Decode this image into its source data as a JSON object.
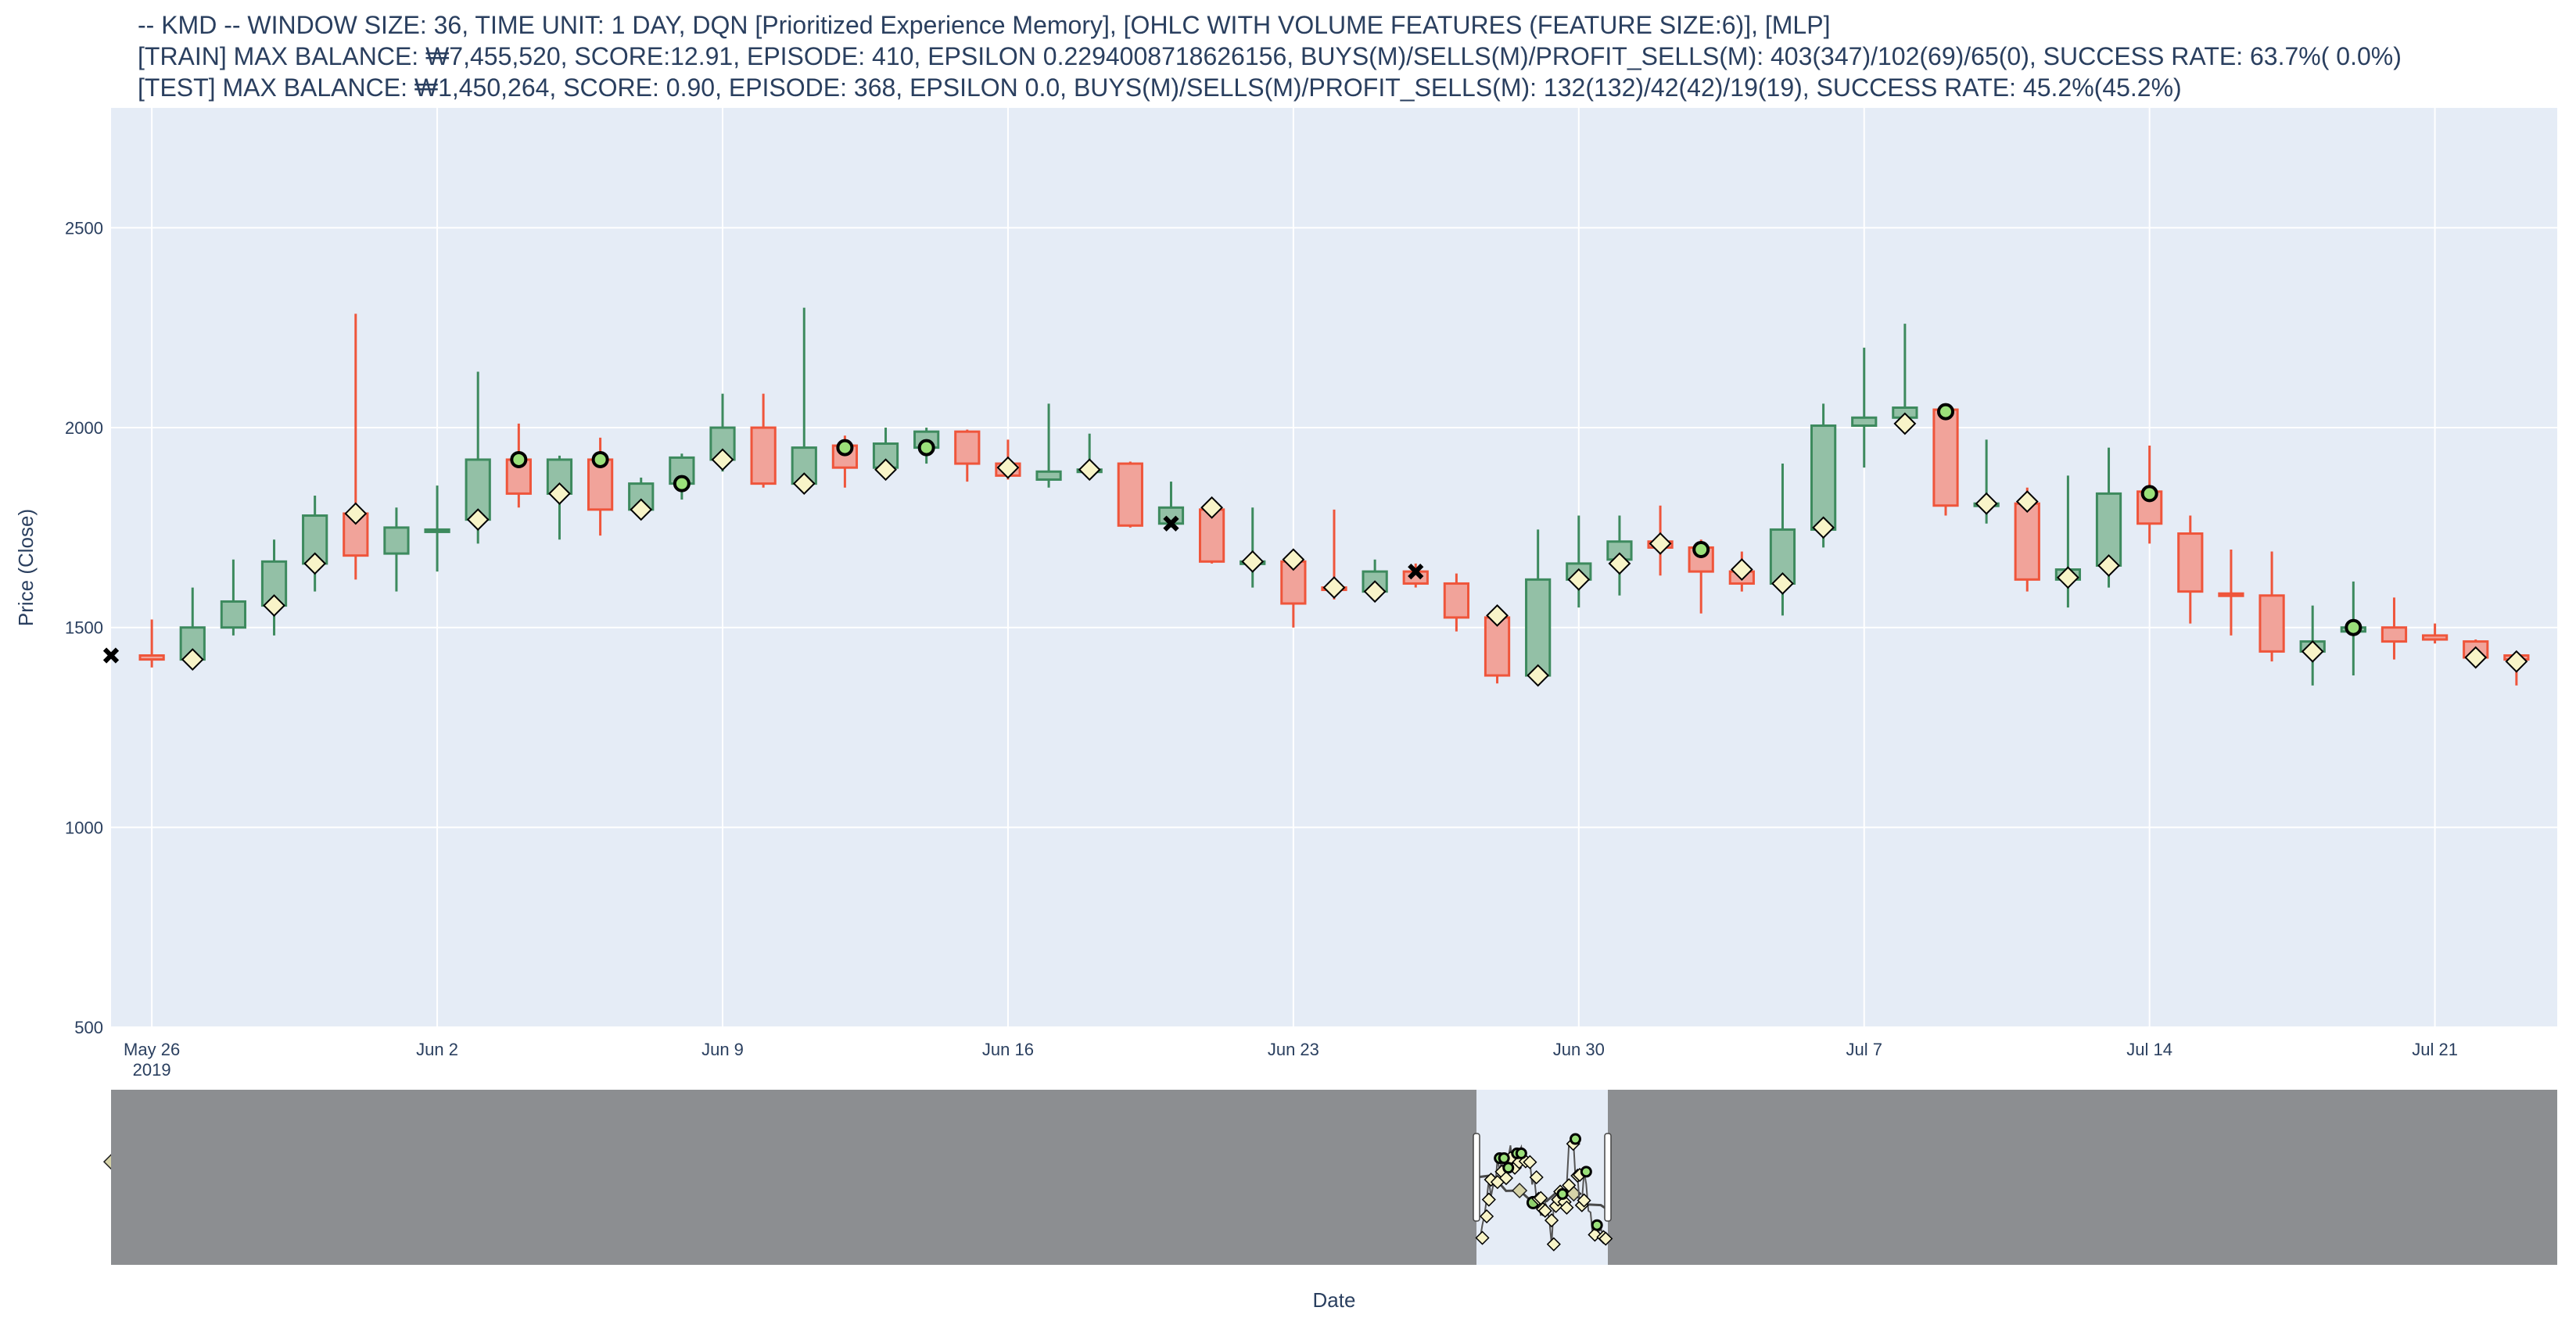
{
  "title_lines": [
    "-- KMD -- WINDOW SIZE: 36, TIME UNIT: 1 DAY, DQN [Prioritized Experience Memory], [OHLC WITH VOLUME FEATURES (FEATURE SIZE:6)], [MLP]",
    "[TRAIN] MAX BALANCE: ₩7,455,520, SCORE:12.91, EPISODE: 410, EPSILON 0.2294008718626156, BUYS(M)/SELLS(M)/PROFIT_SELLS(M): 403(347)/102(69)/65(0), SUCCESS RATE: 63.7%( 0.0%)",
    "[TEST] MAX BALANCE: ₩1,450,264, SCORE: 0.90, EPISODE: 368, EPSILON 0.0, BUYS(M)/SELLS(M)/PROFIT_SELLS(M): 132(132)/42(42)/19(19), SUCCESS RATE: 45.2%(45.2%)"
  ],
  "colors": {
    "plot_bg": "#e5ecf6",
    "grid": "#ffffff",
    "increasing": "#3d8a5e",
    "increasing_fill": "#93c0a6",
    "decreasing": "#ef553b",
    "decreasing_fill": "#f1a39a",
    "buy_marker": "#f8f4c8",
    "profit_sell_marker": "#9be07a",
    "rangeslider_mask": "#8c8e91",
    "rangeslider_window": "#e5ecf6"
  },
  "chart_data": {
    "type": "candlestick",
    "xlabel": "Date",
    "ylabel": "Price (Close)",
    "ylim": [
      500,
      2800
    ],
    "y_ticks": [
      500,
      1000,
      1500,
      2000,
      2500
    ],
    "x_range": [
      "2019-05-25",
      "2019-07-24"
    ],
    "x_ticks": [
      {
        "date": "2019-05-26",
        "label": "May 26",
        "sublabel": "2019"
      },
      {
        "date": "2019-06-02",
        "label": "Jun 2",
        "sublabel": ""
      },
      {
        "date": "2019-06-09",
        "label": "Jun 9",
        "sublabel": ""
      },
      {
        "date": "2019-06-16",
        "label": "Jun 16",
        "sublabel": ""
      },
      {
        "date": "2019-06-23",
        "label": "Jun 23",
        "sublabel": ""
      },
      {
        "date": "2019-06-30",
        "label": "Jun 30",
        "sublabel": ""
      },
      {
        "date": "2019-07-07",
        "label": "Jul 7",
        "sublabel": ""
      },
      {
        "date": "2019-07-14",
        "label": "Jul 14",
        "sublabel": ""
      },
      {
        "date": "2019-07-21",
        "label": "Jul 21",
        "sublabel": ""
      }
    ],
    "grid": true,
    "candles": [
      {
        "date": "2019-05-26",
        "open": 1430,
        "high": 1520,
        "low": 1400,
        "close": 1420
      },
      {
        "date": "2019-05-27",
        "open": 1420,
        "high": 1600,
        "low": 1410,
        "close": 1500
      },
      {
        "date": "2019-05-28",
        "open": 1500,
        "high": 1670,
        "low": 1480,
        "close": 1565
      },
      {
        "date": "2019-05-29",
        "open": 1555,
        "high": 1720,
        "low": 1480,
        "close": 1665
      },
      {
        "date": "2019-05-30",
        "open": 1660,
        "high": 1830,
        "low": 1590,
        "close": 1780
      },
      {
        "date": "2019-05-31",
        "open": 1785,
        "high": 2285,
        "low": 1620,
        "close": 1680
      },
      {
        "date": "2019-06-01",
        "open": 1685,
        "high": 1800,
        "low": 1590,
        "close": 1750
      },
      {
        "date": "2019-06-02",
        "open": 1745,
        "high": 1855,
        "low": 1640,
        "close": 1745
      },
      {
        "date": "2019-06-03",
        "open": 1770,
        "high": 2140,
        "low": 1710,
        "close": 1920
      },
      {
        "date": "2019-06-04",
        "open": 1920,
        "high": 2010,
        "low": 1800,
        "close": 1835
      },
      {
        "date": "2019-06-05",
        "open": 1835,
        "high": 1930,
        "low": 1720,
        "close": 1920
      },
      {
        "date": "2019-06-06",
        "open": 1920,
        "high": 1975,
        "low": 1730,
        "close": 1795
      },
      {
        "date": "2019-06-07",
        "open": 1795,
        "high": 1875,
        "low": 1770,
        "close": 1860
      },
      {
        "date": "2019-06-08",
        "open": 1860,
        "high": 1935,
        "low": 1820,
        "close": 1925
      },
      {
        "date": "2019-06-09",
        "open": 1920,
        "high": 2085,
        "low": 1890,
        "close": 2000
      },
      {
        "date": "2019-06-10",
        "open": 2000,
        "high": 2085,
        "low": 1850,
        "close": 1860
      },
      {
        "date": "2019-06-11",
        "open": 1860,
        "high": 2300,
        "low": 1850,
        "close": 1950
      },
      {
        "date": "2019-06-12",
        "open": 1955,
        "high": 1980,
        "low": 1850,
        "close": 1900
      },
      {
        "date": "2019-06-13",
        "open": 1900,
        "high": 2000,
        "low": 1885,
        "close": 1960
      },
      {
        "date": "2019-06-14",
        "open": 1950,
        "high": 2000,
        "low": 1910,
        "close": 1990
      },
      {
        "date": "2019-06-15",
        "open": 1990,
        "high": 1995,
        "low": 1865,
        "close": 1910
      },
      {
        "date": "2019-06-16",
        "open": 1910,
        "high": 1970,
        "low": 1870,
        "close": 1880
      },
      {
        "date": "2019-06-17",
        "open": 1870,
        "high": 2060,
        "low": 1850,
        "close": 1890
      },
      {
        "date": "2019-06-18",
        "open": 1895,
        "high": 1985,
        "low": 1885,
        "close": 1895
      },
      {
        "date": "2019-06-19",
        "open": 1910,
        "high": 1915,
        "low": 1750,
        "close": 1755
      },
      {
        "date": "2019-06-20",
        "open": 1760,
        "high": 1865,
        "low": 1750,
        "close": 1800
      },
      {
        "date": "2019-06-21",
        "open": 1795,
        "high": 1800,
        "low": 1660,
        "close": 1665
      },
      {
        "date": "2019-06-22",
        "open": 1665,
        "high": 1800,
        "low": 1600,
        "close": 1665
      },
      {
        "date": "2019-06-23",
        "open": 1665,
        "high": 1675,
        "low": 1500,
        "close": 1560
      },
      {
        "date": "2019-06-24",
        "open": 1600,
        "high": 1795,
        "low": 1570,
        "close": 1595
      },
      {
        "date": "2019-06-25",
        "open": 1590,
        "high": 1670,
        "low": 1570,
        "close": 1640
      },
      {
        "date": "2019-06-26",
        "open": 1640,
        "high": 1660,
        "low": 1600,
        "close": 1610
      },
      {
        "date": "2019-06-27",
        "open": 1610,
        "high": 1635,
        "low": 1490,
        "close": 1525
      },
      {
        "date": "2019-06-28",
        "open": 1525,
        "high": 1540,
        "low": 1360,
        "close": 1380
      },
      {
        "date": "2019-06-29",
        "open": 1380,
        "high": 1745,
        "low": 1370,
        "close": 1620
      },
      {
        "date": "2019-06-30",
        "open": 1620,
        "high": 1780,
        "low": 1550,
        "close": 1660
      },
      {
        "date": "2019-07-01",
        "open": 1670,
        "high": 1780,
        "low": 1580,
        "close": 1715
      },
      {
        "date": "2019-07-02",
        "open": 1715,
        "high": 1805,
        "low": 1630,
        "close": 1700
      },
      {
        "date": "2019-07-03",
        "open": 1700,
        "high": 1720,
        "low": 1535,
        "close": 1640
      },
      {
        "date": "2019-07-04",
        "open": 1640,
        "high": 1690,
        "low": 1590,
        "close": 1610
      },
      {
        "date": "2019-07-05",
        "open": 1610,
        "high": 1910,
        "low": 1530,
        "close": 1745
      },
      {
        "date": "2019-07-06",
        "open": 1745,
        "high": 2060,
        "low": 1700,
        "close": 2005
      },
      {
        "date": "2019-07-07",
        "open": 2005,
        "high": 2200,
        "low": 1900,
        "close": 2025
      },
      {
        "date": "2019-07-08",
        "open": 2025,
        "high": 2260,
        "low": 2000,
        "close": 2050
      },
      {
        "date": "2019-07-09",
        "open": 2045,
        "high": 2050,
        "low": 1780,
        "close": 1805
      },
      {
        "date": "2019-07-10",
        "open": 1805,
        "high": 1970,
        "low": 1760,
        "close": 1810
      },
      {
        "date": "2019-07-11",
        "open": 1810,
        "high": 1850,
        "low": 1590,
        "close": 1620
      },
      {
        "date": "2019-07-12",
        "open": 1620,
        "high": 1880,
        "low": 1550,
        "close": 1645
      },
      {
        "date": "2019-07-13",
        "open": 1655,
        "high": 1950,
        "low": 1600,
        "close": 1835
      },
      {
        "date": "2019-07-14",
        "open": 1840,
        "high": 1955,
        "low": 1710,
        "close": 1760
      },
      {
        "date": "2019-07-15",
        "open": 1735,
        "high": 1780,
        "low": 1510,
        "close": 1590
      },
      {
        "date": "2019-07-16",
        "open": 1585,
        "high": 1695,
        "low": 1480,
        "close": 1580
      },
      {
        "date": "2019-07-17",
        "open": 1580,
        "high": 1690,
        "low": 1415,
        "close": 1440
      },
      {
        "date": "2019-07-18",
        "open": 1440,
        "high": 1555,
        "low": 1355,
        "close": 1465
      },
      {
        "date": "2019-07-19",
        "open": 1490,
        "high": 1615,
        "low": 1380,
        "close": 1500
      },
      {
        "date": "2019-07-20",
        "open": 1500,
        "high": 1575,
        "low": 1420,
        "close": 1465
      },
      {
        "date": "2019-07-21",
        "open": 1480,
        "high": 1510,
        "low": 1460,
        "close": 1470
      },
      {
        "date": "2019-07-22",
        "open": 1465,
        "high": 1470,
        "low": 1400,
        "close": 1425
      },
      {
        "date": "2019-07-23",
        "open": 1430,
        "high": 1440,
        "low": 1355,
        "close": 1420
      }
    ],
    "buy_markers": [
      {
        "date": "2019-05-27",
        "price": 1420
      },
      {
        "date": "2019-05-29",
        "price": 1555
      },
      {
        "date": "2019-05-30",
        "price": 1660
      },
      {
        "date": "2019-05-31",
        "price": 1785
      },
      {
        "date": "2019-06-03",
        "price": 1770
      },
      {
        "date": "2019-06-05",
        "price": 1835
      },
      {
        "date": "2019-06-07",
        "price": 1795
      },
      {
        "date": "2019-06-09",
        "price": 1920
      },
      {
        "date": "2019-06-11",
        "price": 1860
      },
      {
        "date": "2019-06-13",
        "price": 1895
      },
      {
        "date": "2019-06-16",
        "price": 1900
      },
      {
        "date": "2019-06-18",
        "price": 1895
      },
      {
        "date": "2019-06-21",
        "price": 1800
      },
      {
        "date": "2019-06-22",
        "price": 1665
      },
      {
        "date": "2019-06-23",
        "price": 1670
      },
      {
        "date": "2019-06-24",
        "price": 1600
      },
      {
        "date": "2019-06-25",
        "price": 1590
      },
      {
        "date": "2019-06-28",
        "price": 1530
      },
      {
        "date": "2019-06-29",
        "price": 1380
      },
      {
        "date": "2019-06-30",
        "price": 1620
      },
      {
        "date": "2019-07-01",
        "price": 1660
      },
      {
        "date": "2019-07-02",
        "price": 1710
      },
      {
        "date": "2019-07-04",
        "price": 1645
      },
      {
        "date": "2019-07-05",
        "price": 1610
      },
      {
        "date": "2019-07-06",
        "price": 1750
      },
      {
        "date": "2019-07-08",
        "price": 2010
      },
      {
        "date": "2019-07-10",
        "price": 1810
      },
      {
        "date": "2019-07-11",
        "price": 1815
      },
      {
        "date": "2019-07-12",
        "price": 1625
      },
      {
        "date": "2019-07-13",
        "price": 1655
      },
      {
        "date": "2019-07-18",
        "price": 1440
      },
      {
        "date": "2019-07-22",
        "price": 1425
      },
      {
        "date": "2019-07-23",
        "price": 1415
      }
    ],
    "profit_sell_markers": [
      {
        "date": "2019-06-04",
        "price": 1920
      },
      {
        "date": "2019-06-06",
        "price": 1920
      },
      {
        "date": "2019-06-08",
        "price": 1860
      },
      {
        "date": "2019-06-12",
        "price": 1950
      },
      {
        "date": "2019-06-14",
        "price": 1950
      },
      {
        "date": "2019-07-03",
        "price": 1695
      },
      {
        "date": "2019-07-09",
        "price": 2040
      },
      {
        "date": "2019-07-14",
        "price": 1835
      },
      {
        "date": "2019-07-19",
        "price": 1500
      }
    ],
    "sell_markers": [
      {
        "date": "2019-05-25",
        "price": 1430
      },
      {
        "date": "2019-06-20",
        "price": 1760
      },
      {
        "date": "2019-06-26",
        "price": 1640
      }
    ]
  }
}
